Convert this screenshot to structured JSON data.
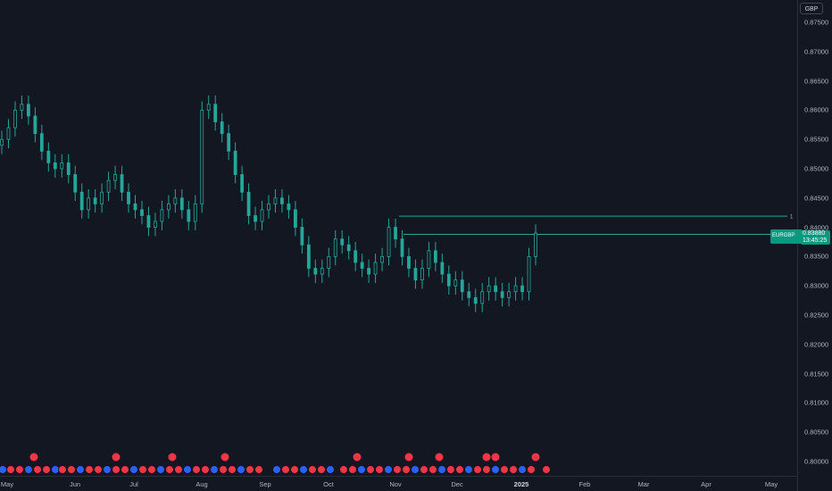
{
  "currency": "GBP",
  "symbol": "EURGBP",
  "last_price": "0.83880",
  "countdown": "13:45:25",
  "line_marker": "1",
  "price_ticks": [
    "0.87500",
    "0.87000",
    "0.86500",
    "0.86000",
    "0.85500",
    "0.85000",
    "0.84500",
    "0.84000",
    "0.83500",
    "0.83000",
    "0.82500",
    "0.82000",
    "0.81500",
    "0.81000",
    "0.80500",
    "0.80000"
  ],
  "time_ticks": [
    "May",
    "Jun",
    "Jul",
    "Aug",
    "Sep",
    "Oct",
    "Nov",
    "Dec",
    "2025",
    "Feb",
    "Mar",
    "Apr",
    "May"
  ],
  "colors": {
    "background": "#131722",
    "up": "#26a69a",
    "down": "#ef5350",
    "line": "#26a69a",
    "event_flag": "#f23645",
    "event_blue": "#2962ff"
  },
  "chart_data": {
    "type": "candlestick",
    "ylim": [
      0.7975,
      0.8775
    ],
    "ohlc_sample_closes": [
      0.855,
      0.857,
      0.86,
      0.861,
      0.859,
      0.856,
      0.853,
      0.851,
      0.85,
      0.851,
      0.849,
      0.846,
      0.843,
      0.845,
      0.844,
      0.846,
      0.848,
      0.849,
      0.846,
      0.844,
      0.843,
      0.842,
      0.84,
      0.841,
      0.843,
      0.844,
      0.845,
      0.843,
      0.841,
      0.844,
      0.86,
      0.861,
      0.858,
      0.856,
      0.853,
      0.849,
      0.846,
      0.842,
      0.841,
      0.843,
      0.844,
      0.845,
      0.844,
      0.843,
      0.84,
      0.837,
      0.833,
      0.832,
      0.833,
      0.835,
      0.838,
      0.837,
      0.836,
      0.834,
      0.833,
      0.832,
      0.834,
      0.835,
      0.84,
      0.838,
      0.835,
      0.833,
      0.831,
      0.833,
      0.836,
      0.834,
      0.832,
      0.83,
      0.831,
      0.829,
      0.828,
      0.827,
      0.829,
      0.83,
      0.829,
      0.828,
      0.829,
      0.83,
      0.829,
      0.835,
      0.839
    ],
    "horizontal_lines": [
      0.8419,
      0.8388
    ]
  }
}
